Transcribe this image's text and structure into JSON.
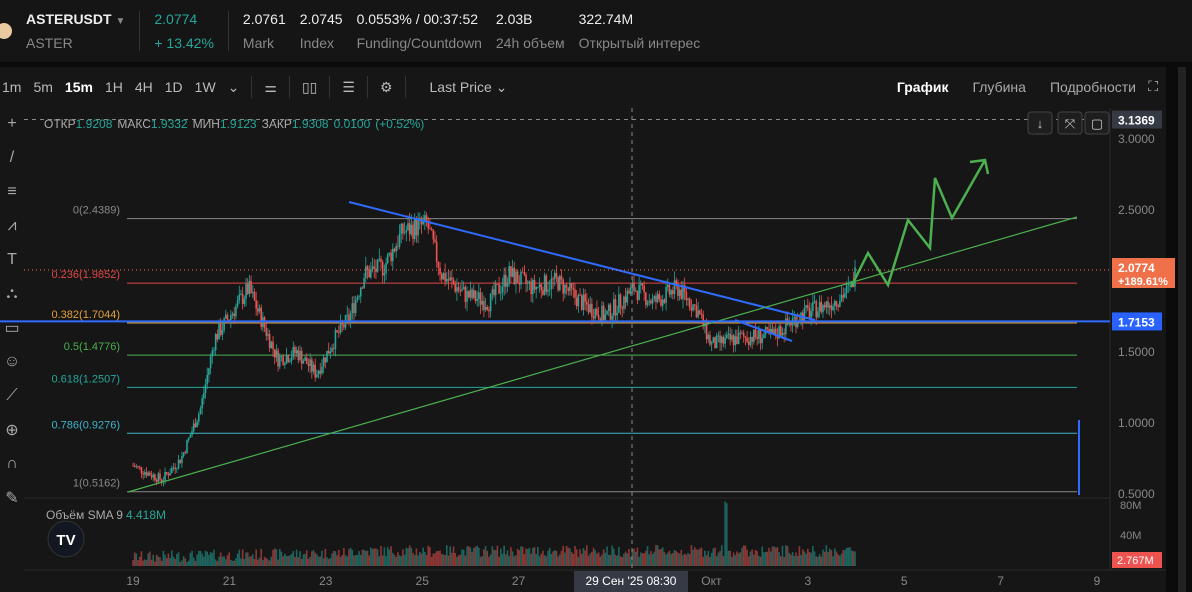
{
  "header": {
    "symbol": "ASTERUSDT",
    "base": "ASTER",
    "price": "2.0774",
    "change": "+ 13.42%",
    "stats": [
      {
        "value": "2.0761",
        "label": "Mark"
      },
      {
        "value": "2.0745",
        "label": "Index"
      },
      {
        "value": "0.0553% / 00:37:52",
        "label": "Funding/Countdown"
      },
      {
        "value": "2.03B",
        "label": "24h объем"
      },
      {
        "value": "322.74M",
        "label": "Открытый интерес"
      }
    ]
  },
  "toolbar": {
    "intervals": [
      "1m",
      "5m",
      "15m",
      "1H",
      "4H",
      "1D",
      "1W"
    ],
    "active": "15m",
    "price_type": "Last Price",
    "views": [
      "График",
      "Глубина",
      "Подробности"
    ],
    "active_view": "График"
  },
  "ohlc": {
    "o_label": "ОТКР",
    "o": "1.9208",
    "h_label": "МАКС",
    "h": "1.9332",
    "l_label": "МИН",
    "l": "1.9123",
    "c_label": "ЗАКР",
    "c": "1.9308",
    "chg": "0.0100",
    "pct": "(+0.52%)"
  },
  "volume": {
    "label": "Объём SMA 9",
    "value": "4.418M",
    "axis": [
      "80M",
      "40M"
    ],
    "current": "2.767M"
  },
  "colors": {
    "up": "#26a69a",
    "down": "#ef5350",
    "accent_blue": "#2962ff",
    "price_tag": "#f0704a"
  },
  "chart_data": {
    "type": "candlestick",
    "pair": "ASTERUSDT",
    "interval": "15m",
    "y_ticks": [
      "3.0000",
      "2.5000",
      "1.5000",
      "1.0000",
      "0.5000"
    ],
    "x_ticks": [
      {
        "d": 19,
        "l": "19"
      },
      {
        "d": 21,
        "l": "21"
      },
      {
        "d": 23,
        "l": "23"
      },
      {
        "d": 25,
        "l": "25"
      },
      {
        "d": 27,
        "l": "27"
      },
      {
        "d": 31,
        "l": "Окт"
      },
      {
        "d": 33,
        "l": "3"
      },
      {
        "d": 35,
        "l": "5"
      },
      {
        "d": 37,
        "l": "7"
      },
      {
        "d": 39,
        "l": "9"
      }
    ],
    "crosshair": {
      "x_label": "29 Сен '25   08:30",
      "y_label": "3.1369",
      "y": 3.1369
    },
    "last_price": {
      "value": "2.0774",
      "pct": "+189.61%",
      "y": 2.0774
    },
    "hline": {
      "value": "1.7153",
      "y": 1.7153
    },
    "fib": [
      {
        "l": "0(2.4389)",
        "v": 2.4389,
        "c": "#888888"
      },
      {
        "l": "0.236(1.9852)",
        "v": 1.9852,
        "c": "#e04646"
      },
      {
        "l": "0.382(1.7044)",
        "v": 1.7044,
        "c": "#e3a13b"
      },
      {
        "l": "0.5(1.4776)",
        "v": 1.4776,
        "c": "#4caf50"
      },
      {
        "l": "0.618(1.2507)",
        "v": 1.2507,
        "c": "#26a69a"
      },
      {
        "l": "0.786(0.9276)",
        "v": 0.9276,
        "c": "#3fb4c8"
      },
      {
        "l": "1(0.5162)",
        "v": 0.5162,
        "c": "#888888"
      }
    ],
    "price_path": [
      [
        19,
        0.7
      ],
      [
        19.6,
        0.6
      ],
      [
        20,
        0.75
      ],
      [
        20.4,
        1.1
      ],
      [
        20.7,
        1.6
      ],
      [
        21,
        1.75
      ],
      [
        21.4,
        1.95
      ],
      [
        21.7,
        1.7
      ],
      [
        22,
        1.45
      ],
      [
        22.4,
        1.5
      ],
      [
        22.8,
        1.35
      ],
      [
        23.2,
        1.6
      ],
      [
        23.5,
        1.75
      ],
      [
        23.8,
        2.05
      ],
      [
        24.2,
        2.1
      ],
      [
        24.6,
        2.35
      ],
      [
        25.1,
        2.4
      ],
      [
        25.4,
        2.05
      ],
      [
        25.9,
        1.9
      ],
      [
        26.4,
        1.85
      ],
      [
        26.8,
        2.05
      ],
      [
        27.3,
        1.95
      ],
      [
        27.8,
        2.0
      ],
      [
        28.3,
        1.85
      ],
      [
        28.8,
        1.75
      ],
      [
        29.4,
        1.95
      ],
      [
        29.8,
        1.85
      ],
      [
        30.3,
        1.95
      ],
      [
        30.7,
        1.8
      ],
      [
        31,
        1.55
      ],
      [
        31.6,
        1.6
      ],
      [
        32.3,
        1.62
      ],
      [
        32.8,
        1.75
      ],
      [
        33.5,
        1.85
      ],
      [
        33.9,
        1.95
      ],
      [
        34,
        2.08
      ]
    ]
  }
}
